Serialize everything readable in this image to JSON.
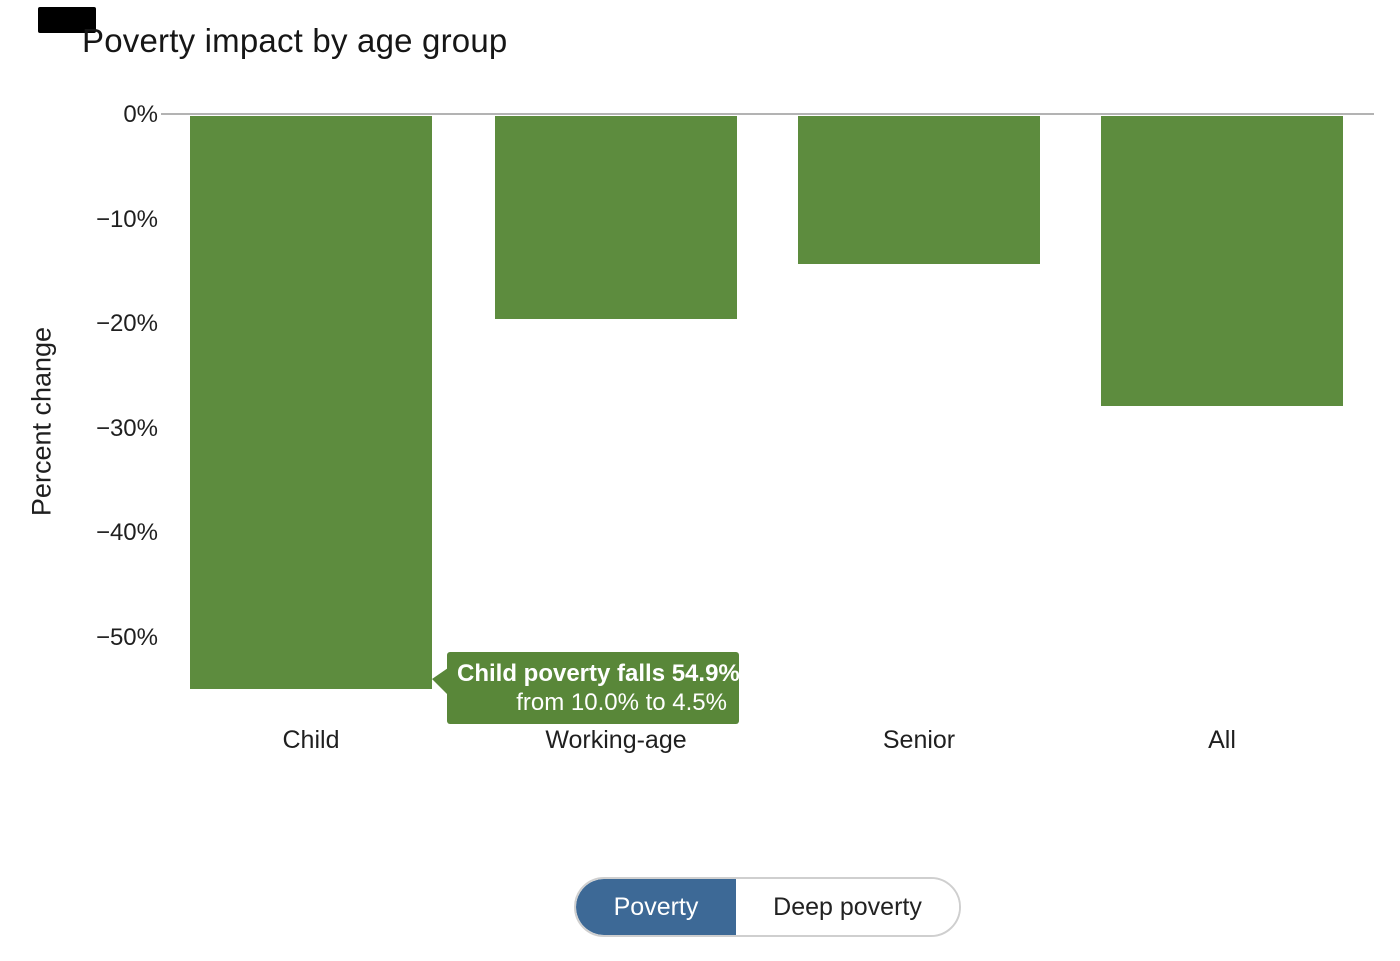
{
  "chart_data": {
    "type": "bar",
    "title": "Poverty impact by age group",
    "ylabel": "Percent change",
    "xlabel": "",
    "categories": [
      "Child",
      "Working-age",
      "Senior",
      "All"
    ],
    "values": [
      -54.9,
      -19.5,
      -14.2,
      -27.8
    ],
    "ylim": [
      -56,
      0
    ],
    "yticks": [
      0,
      -10,
      -20,
      -30,
      -40,
      -50
    ],
    "ytick_labels": [
      "0%",
      "−10%",
      "−20%",
      "−30%",
      "−40%",
      "−50%"
    ],
    "grid": false,
    "legend_position": "none",
    "bar_color": "#5d8c3e",
    "axis_line_color": "#b3b3b3",
    "annotation": {
      "target_category": "Child",
      "line1": "Child poverty falls 54.9%",
      "line2": "from 10.0% to 4.5%",
      "background_color": "#598739",
      "text_color": "#ffffff"
    }
  },
  "toggle": {
    "options": [
      {
        "label": "Poverty",
        "selected": true
      },
      {
        "label": "Deep poverty",
        "selected": false
      }
    ],
    "selected_color": "#3d6996"
  }
}
